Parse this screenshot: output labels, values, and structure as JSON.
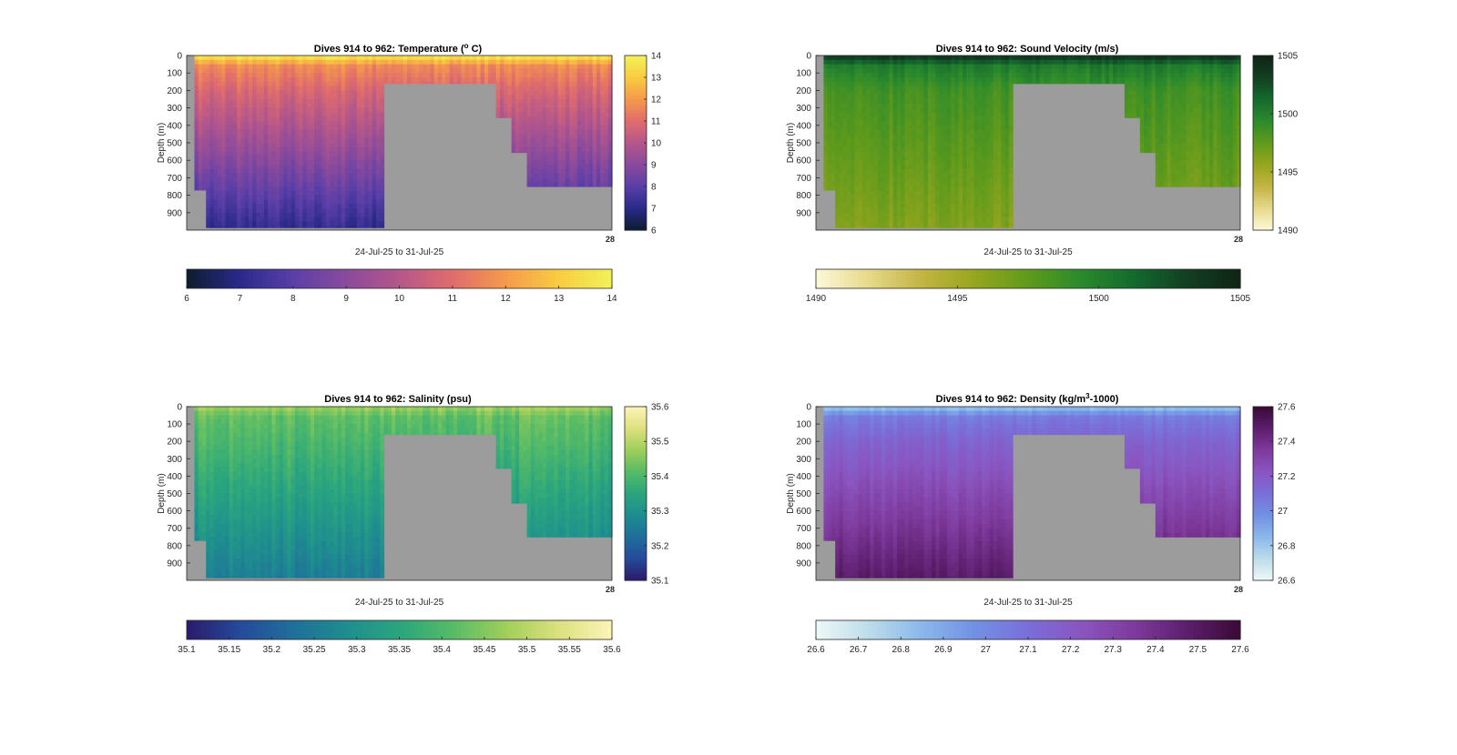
{
  "figure": {
    "tick_text_color": "#262626",
    "title_color": "#000000",
    "mask_color": "#9c9c9c"
  },
  "chart_data": [
    {
      "type": "heatmap",
      "title": "Dives 914 to 962: Temperature (",
      "title_sup": "o",
      "title_end": " C)",
      "xlabel": "24-Jul-25 to 31-Jul-25",
      "ylabel": "Depth (m)",
      "ylim": [
        0,
        1000
      ],
      "yticks": [
        "0",
        "100",
        "200",
        "300",
        "400",
        "500",
        "600",
        "700",
        "800",
        "900"
      ],
      "x_end_label": "28",
      "colormap": [
        "#0c1c2e",
        "#2a2a8a",
        "#5a3fa8",
        "#8a4a9c",
        "#b5578a",
        "#e06c6c",
        "#f59a4c",
        "#f8cc40",
        "#f2f25a"
      ],
      "clim": [
        6,
        14
      ],
      "colorbar_ticks": [
        "6",
        "7",
        "8",
        "9",
        "10",
        "11",
        "12",
        "13",
        "14"
      ],
      "h_colorbar_ticks": [
        "6",
        "7",
        "8",
        "9",
        "10",
        "11",
        "12",
        "13",
        "14"
      ],
      "surface_value": 13.8,
      "mid_value": 10.8,
      "deep_value": 7.2,
      "variability": 0.35
    },
    {
      "type": "heatmap",
      "title": "Dives 914 to 962: Sound Velocity (m/s)",
      "title_sup": "",
      "title_end": "",
      "xlabel": "24-Jul-25 to 31-Jul-25",
      "ylabel": "Depth (m)",
      "ylim": [
        0,
        1000
      ],
      "yticks": [
        "0",
        "100",
        "200",
        "300",
        "400",
        "500",
        "600",
        "700",
        "800",
        "900"
      ],
      "x_end_label": "28",
      "colormap": [
        "#fdf8d8",
        "#e6d98a",
        "#c3b443",
        "#96a61e",
        "#5f9a1c",
        "#2b8a2c",
        "#14692e",
        "#123f22",
        "#0f2415"
      ],
      "clim": [
        1490,
        1505
      ],
      "colorbar_ticks": [
        "1490",
        "1495",
        "1500",
        "1505"
      ],
      "h_colorbar_ticks": [
        "1490",
        "1495",
        "1500",
        "1505"
      ],
      "surface_value": 1504.2,
      "mid_value": 1498.6,
      "deep_value": 1496.4,
      "variability": 0.6
    },
    {
      "type": "heatmap",
      "title": "Dives 914 to 962: Salinity (psu)",
      "title_sup": "",
      "title_end": "",
      "xlabel": "24-Jul-25 to 31-Jul-25",
      "ylabel": "Depth (m)",
      "ylim": [
        0,
        1000
      ],
      "yticks": [
        "0",
        "100",
        "200",
        "300",
        "400",
        "500",
        "600",
        "700",
        "800",
        "900"
      ],
      "x_end_label": "28",
      "colormap": [
        "#2c1a6b",
        "#254a9a",
        "#1f6f9a",
        "#1f8d8f",
        "#2aa57e",
        "#56bb66",
        "#9fcf5a",
        "#dde07e",
        "#fbf5b8"
      ],
      "clim": [
        35.1,
        35.6
      ],
      "colorbar_ticks": [
        "35.1",
        "35.2",
        "35.3",
        "35.4",
        "35.5",
        "35.6"
      ],
      "h_colorbar_ticks": [
        "35.1",
        "35.15",
        "35.2",
        "35.25",
        "35.3",
        "35.35",
        "35.4",
        "35.45",
        "35.5",
        "35.55",
        "35.6"
      ],
      "surface_value": 35.48,
      "mid_value": 35.4,
      "deep_value": 35.26,
      "variability": 0.025
    },
    {
      "type": "heatmap",
      "title": "Dives 914 to 962: Density (kg/m",
      "title_sup": "3",
      "title_end": "-1000)",
      "xlabel": "24-Jul-25 to 31-Jul-25",
      "ylabel": "Depth (m)",
      "ylim": [
        0,
        1000
      ],
      "yticks": [
        "0",
        "100",
        "200",
        "300",
        "400",
        "500",
        "600",
        "700",
        "800",
        "900"
      ],
      "x_end_label": "28",
      "colormap": [
        "#eef8f8",
        "#bcdcea",
        "#8ab8ea",
        "#7290e4",
        "#7a6ed8",
        "#8a55c0",
        "#7e3a9c",
        "#5c1e6c",
        "#3a0a36"
      ],
      "clim": [
        26.6,
        27.6
      ],
      "colorbar_ticks": [
        "26.6",
        "26.8",
        "27",
        "27.2",
        "27.4",
        "27.6"
      ],
      "h_colorbar_ticks": [
        "26.6",
        "26.7",
        "26.8",
        "26.9",
        "27",
        "27.1",
        "27.2",
        "27.3",
        "27.4",
        "27.5",
        "27.6"
      ],
      "surface_value": 26.8,
      "mid_value": 27.15,
      "deep_value": 27.48,
      "variability": 0.03
    }
  ]
}
